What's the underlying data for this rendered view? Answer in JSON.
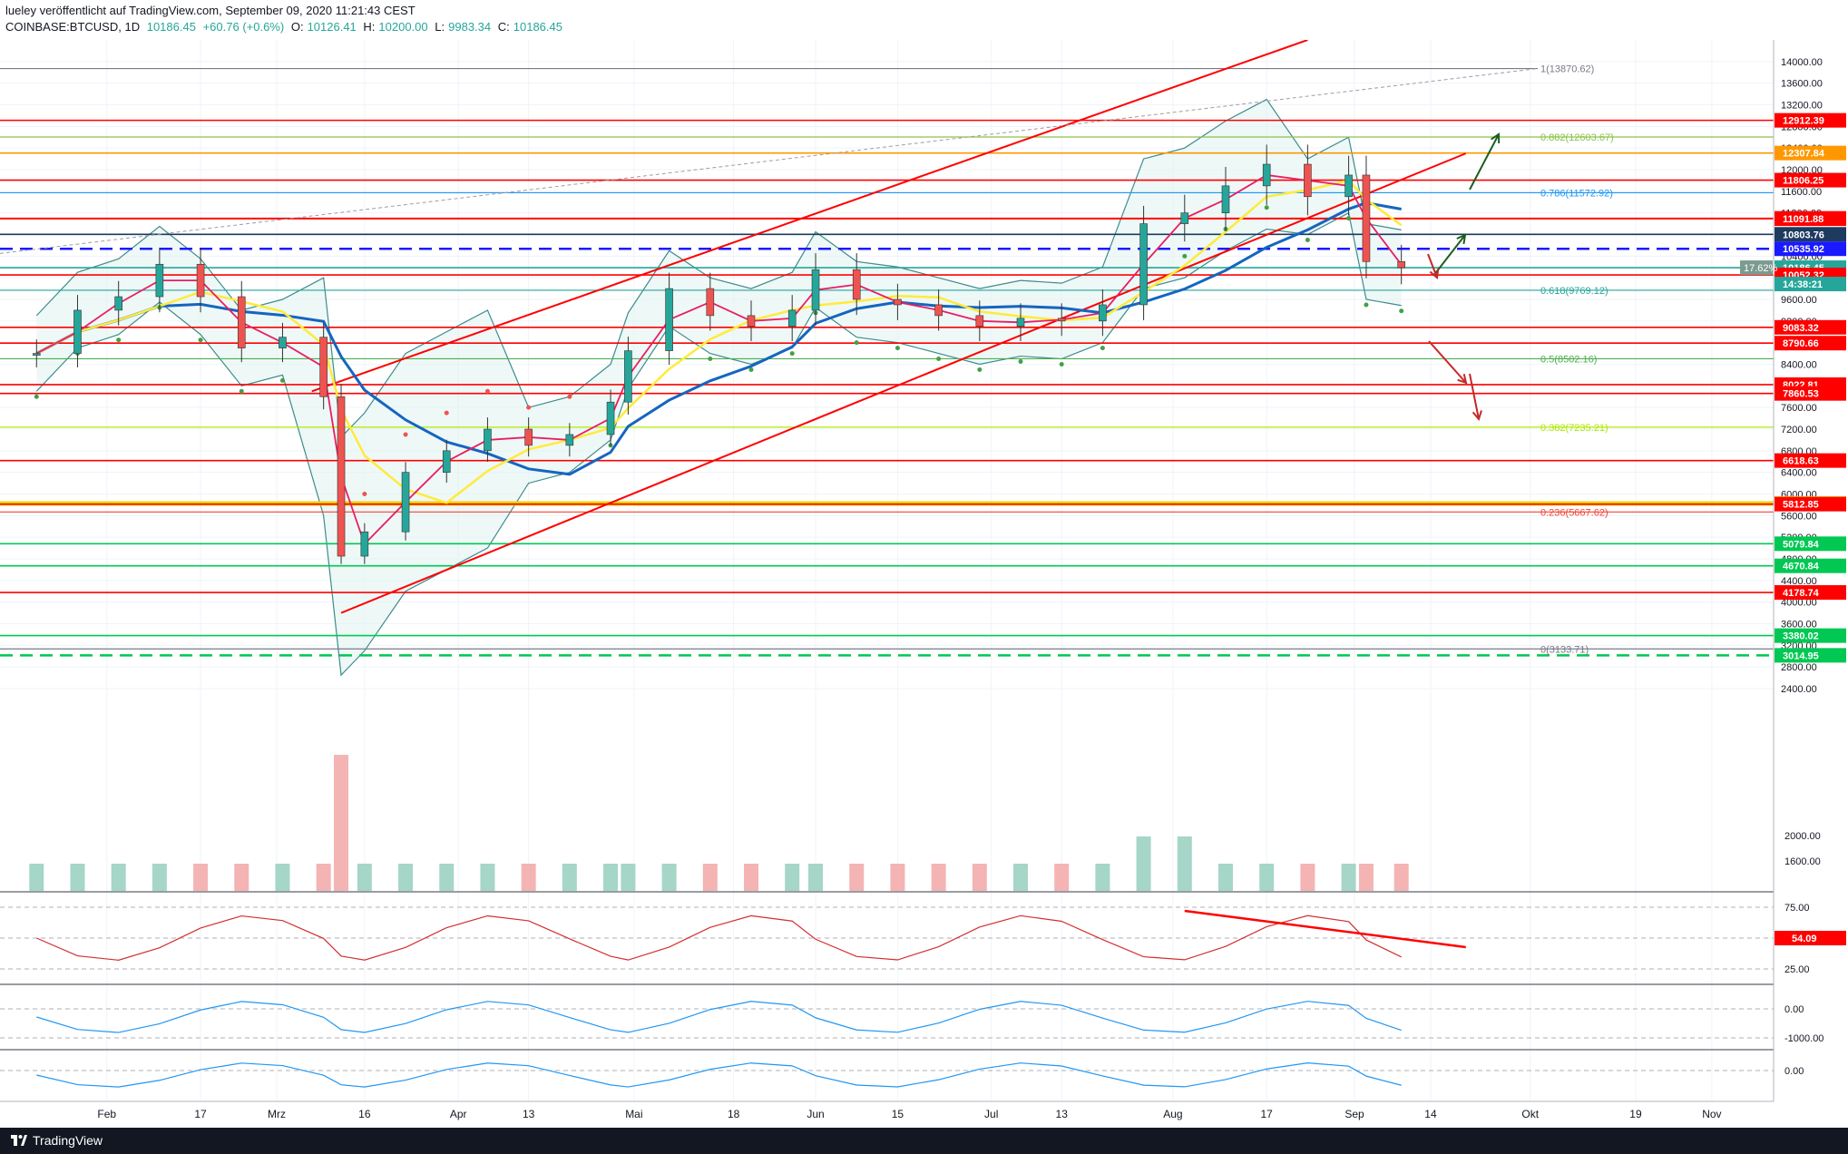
{
  "header": {
    "publisher_line": "lueley veröffentlicht auf TradingView.com, September 09, 2020 11:21:43 CEST",
    "symbol": "COINBASE:BTCUSD, 1D",
    "last": "10186.45",
    "change": "+60.76 (+0.6%)",
    "o_label": "O:",
    "o_value": "10126.41",
    "h_label": "H:",
    "h_value": "10200.00",
    "l_label": "L:",
    "l_value": "9983.34",
    "c_label": "C:",
    "c_value": "10186.45"
  },
  "footer": {
    "brand": "TradingView"
  },
  "colors": {
    "up": "#26a69a",
    "down": "#ef5350",
    "red_line": "#ff0000",
    "ma200": "#1565c0",
    "ma50": "#ffeb3b",
    "ema": "#e91e63",
    "bb": "#3d8c8c",
    "supertrend": "#43a047"
  },
  "chart_data": {
    "type": "line",
    "symbol": "COINBASE:BTCUSD",
    "timeframe": "1D",
    "price_axis": {
      "ylim": [
        2400,
        14400
      ],
      "ticks": [
        "14000.00",
        "13600.00",
        "13200.00",
        "12800.00",
        "12400.00",
        "12000.00",
        "11600.00",
        "11200.00",
        "10800.00",
        "10400.00",
        "10000.00",
        "9600.00",
        "9200.00",
        "8800.00",
        "8400.00",
        "8000.00",
        "7600.00",
        "7200.00",
        "6800.00",
        "6400.00",
        "6000.00",
        "5600.00",
        "5200.00",
        "4800.00",
        "4400.00",
        "4000.00",
        "3600.00",
        "3200.00",
        "2800.00",
        "2400.00"
      ],
      "volume_ticks": [
        "2000.00",
        "1600.00"
      ]
    },
    "x_axis": {
      "ticks": [
        "Feb",
        "17",
        "Mrz",
        "16",
        "Apr",
        "13",
        "Mai",
        "18",
        "Jun",
        "15",
        "Jul",
        "13",
        "Aug",
        "17",
        "Sep",
        "14",
        "Okt",
        "19",
        "Nov"
      ]
    },
    "close_series": [
      {
        "date": "2020-01-20",
        "close": 8600
      },
      {
        "date": "2020-01-27",
        "close": 9400
      },
      {
        "date": "2020-02-03",
        "close": 9650
      },
      {
        "date": "2020-02-10",
        "close": 10250
      },
      {
        "date": "2020-02-17",
        "close": 9650
      },
      {
        "date": "2020-02-24",
        "close": 8700
      },
      {
        "date": "2020-03-02",
        "close": 8900
      },
      {
        "date": "2020-03-09",
        "close": 7800
      },
      {
        "date": "2020-03-12",
        "close": 4850
      },
      {
        "date": "2020-03-16",
        "close": 5300
      },
      {
        "date": "2020-03-23",
        "close": 6400
      },
      {
        "date": "2020-03-30",
        "close": 6800
      },
      {
        "date": "2020-04-06",
        "close": 7200
      },
      {
        "date": "2020-04-13",
        "close": 6900
      },
      {
        "date": "2020-04-20",
        "close": 7100
      },
      {
        "date": "2020-04-27",
        "close": 7700
      },
      {
        "date": "2020-04-30",
        "close": 8650
      },
      {
        "date": "2020-05-07",
        "close": 9800
      },
      {
        "date": "2020-05-14",
        "close": 9300
      },
      {
        "date": "2020-05-21",
        "close": 9100
      },
      {
        "date": "2020-05-28",
        "close": 9400
      },
      {
        "date": "2020-06-01",
        "close": 10150
      },
      {
        "date": "2020-06-08",
        "close": 9600
      },
      {
        "date": "2020-06-15",
        "close": 9500
      },
      {
        "date": "2020-06-22",
        "close": 9300
      },
      {
        "date": "2020-06-29",
        "close": 9100
      },
      {
        "date": "2020-07-06",
        "close": 9250
      },
      {
        "date": "2020-07-13",
        "close": 9200
      },
      {
        "date": "2020-07-20",
        "close": 9500
      },
      {
        "date": "2020-07-27",
        "close": 11000
      },
      {
        "date": "2020-08-03",
        "close": 11200
      },
      {
        "date": "2020-08-10",
        "close": 11700
      },
      {
        "date": "2020-08-17",
        "close": 12100
      },
      {
        "date": "2020-08-24",
        "close": 11500
      },
      {
        "date": "2020-08-31",
        "close": 11900
      },
      {
        "date": "2020-09-03",
        "close": 10300
      },
      {
        "date": "2020-09-09",
        "close": 10186.45
      }
    ],
    "horizontal_levels": [
      {
        "label": "12912.39",
        "value": 12912.39,
        "color": "#ff0000"
      },
      {
        "label": "12307.84",
        "value": 12307.84,
        "color": "#ff9800"
      },
      {
        "label": "11806.25",
        "value": 11806.25,
        "color": "#ff0000"
      },
      {
        "label": "11099.31",
        "value": 11099.31,
        "color": "#ff0000"
      },
      {
        "label": "11091.88",
        "value": 11091.88,
        "color": "#ff0000"
      },
      {
        "label": "10803.76",
        "value": 10803.76,
        "color": "#1e3a5f"
      },
      {
        "label": "10535.92",
        "value": 10535.92,
        "color": "#1a1aff"
      },
      {
        "label": "10186.45",
        "value": 10186.45,
        "color": "#26a69a"
      },
      {
        "label": "10052.32",
        "value": 10052.32,
        "color": "#ff0000"
      },
      {
        "label": "9083.32",
        "value": 9083.32,
        "color": "#ff0000"
      },
      {
        "label": "8790.66",
        "value": 8790.66,
        "color": "#ff0000"
      },
      {
        "label": "8022.81",
        "value": 8022.81,
        "color": "#ff0000"
      },
      {
        "label": "7860.53",
        "value": 7860.53,
        "color": "#ff0000"
      },
      {
        "label": "6618.63",
        "value": 6618.63,
        "color": "#ff0000"
      },
      {
        "label": "5824.20",
        "value": 5824.2,
        "color": "#e6d800"
      },
      {
        "label": "5812.85",
        "value": 5812.85,
        "color": "#ff0000"
      },
      {
        "label": "5079.84",
        "value": 5079.84,
        "color": "#00c853"
      },
      {
        "label": "4670.84",
        "value": 4670.84,
        "color": "#00c853"
      },
      {
        "label": "4178.74",
        "value": 4178.74,
        "color": "#ff0000"
      },
      {
        "label": "3380.02",
        "value": 3380.02,
        "color": "#00c853"
      },
      {
        "label": "3014.95",
        "value": 3014.95,
        "color": "#00c853"
      }
    ],
    "fib_levels": [
      {
        "label": "1(13870.62)",
        "value": 13870.62,
        "color": "#787b86"
      },
      {
        "label": "0.882(12603.67)",
        "value": 12603.67,
        "color": "#8bc34a"
      },
      {
        "label": "0.786(11572.92)",
        "value": 11572.92,
        "color": "#2196f3"
      },
      {
        "label": "0.618(9769.12)",
        "value": 9769.12,
        "color": "#26a69a"
      },
      {
        "label": "0.5(8502.16)",
        "value": 8502.16,
        "color": "#4caf50"
      },
      {
        "label": "0.382(7235.21)",
        "value": 7235.21,
        "color": "#aeea00"
      },
      {
        "label": "0.236(5667.62)",
        "value": 5667.62,
        "color": "#f44336"
      },
      {
        "label": "0(3133.71)",
        "value": 3133.71,
        "color": "#787b86"
      }
    ],
    "countdown_label": "14:38:21",
    "percent_label": "17.62%",
    "rsi": {
      "ticks": [
        "75.00",
        "50.00",
        "25.00"
      ],
      "value_label": "54.09"
    },
    "macd": {
      "ticks": [
        "0.00",
        "-1000.00"
      ]
    },
    "osc": {
      "ticks": [
        "0.00"
      ]
    }
  }
}
